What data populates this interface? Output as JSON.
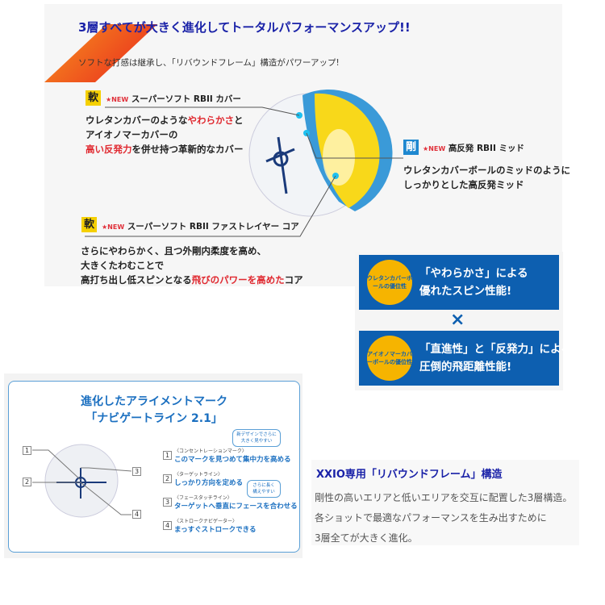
{
  "layers": {
    "title": "3層すべてが大きく進化してトータルパフォーマンスアップ!!",
    "subtitle": "ソフトな打感は継承し、「リバウンドフレーム」構造がパワーアップ!",
    "new_label": "★NEW",
    "cover": {
      "badge": "軟",
      "name": "スーパーソフト RBII カバー",
      "desc1": "ウレタンカバーのような",
      "desc1_red": "やわらかさ",
      "desc1_end": "と",
      "desc2": "アイオノマーカバーの",
      "desc3_red": "高い反発力",
      "desc3": "を併せ持つ革新的なカバー"
    },
    "mid": {
      "badge": "剛",
      "name": "高反発 RBII ミッド",
      "desc1": "ウレタンカバーボールのミッドのように",
      "desc2": "しっかりとした高反発ミッド"
    },
    "core": {
      "badge": "軟",
      "name": "スーパーソフト RBII ファストレイヤー コア",
      "desc1": "さらにやわらかく、且つ外剛内柔度を高め、",
      "desc2": "大きくたわむことで",
      "desc3": "高打ち出し低スピンとなる",
      "desc3_red": "飛びのパワーを高めた",
      "desc3_end": "コア"
    }
  },
  "merits": {
    "urethane": {
      "circle": "ウレタンカバーボールの優位性",
      "line1": "「やわらかさ」による",
      "line2": "優れたスピン性能!"
    },
    "times": "×",
    "ionomer": {
      "circle": "アイオノマーカバーボールの優位性",
      "line1": "「直進性」と「反発力」による",
      "line2": "圧倒的飛距離性能!"
    }
  },
  "navigate": {
    "title1": "進化したアライメントマーク",
    "title2": "「ナビゲートライン 2.1」",
    "items": [
      {
        "num": "1",
        "small": "〈コンセントレーションマーク〉",
        "text": "このマークを見つめて集中力を高める"
      },
      {
        "num": "2",
        "small": "〈ターゲットライン〉",
        "text": "しっかり方向を定める"
      },
      {
        "num": "3",
        "small": "〈フェースタッチライン〉",
        "text": "ターゲットへ垂直にフェースを合わせる"
      },
      {
        "num": "4",
        "small": "〈ストロークナビゲーター〉",
        "text": "まっすぐストロークできる"
      }
    ],
    "bubble1": "新デザインでさらに大きく見やすい",
    "bubble2": "さらに長く構えやすい"
  },
  "rebound": {
    "title": "XXIO専用「リバウンドフレーム」構造",
    "lines": [
      "剛性の高いエリアと低いエリアを交互に配置した3層構造。",
      "各ショットで最適なパフォーマンスを生み出すために",
      "3層全てが大きく進化。"
    ]
  },
  "colors": {
    "title_blue": "#1a22a8",
    "accent_red": "#e0282f",
    "badge_yellow": "#f5d000",
    "box_blue": "#0d5fb0"
  }
}
